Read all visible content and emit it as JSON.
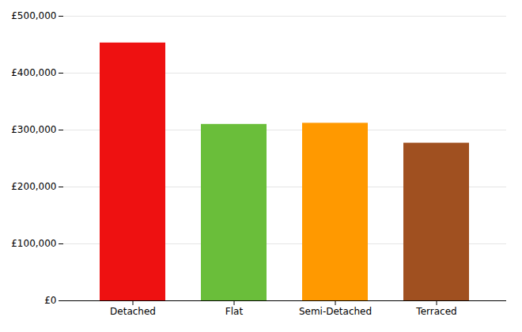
{
  "chart_data": {
    "type": "bar",
    "categories": [
      "Detached",
      "Flat",
      "Semi-Detached",
      "Terraced"
    ],
    "values": [
      453000,
      310000,
      312000,
      277000
    ],
    "colors": [
      "#ee1111",
      "#6abe3a",
      "#ff9900",
      "#a05020"
    ],
    "ylim": [
      0,
      500000
    ],
    "yticks": [
      {
        "value": 0,
        "label": "£0"
      },
      {
        "value": 100000,
        "label": "£100,000"
      },
      {
        "value": 200000,
        "label": "£200,000"
      },
      {
        "value": 300000,
        "label": "£300,000"
      },
      {
        "value": 400000,
        "label": "£400,000"
      },
      {
        "value": 500000,
        "label": "£500,000"
      }
    ],
    "grid": true
  }
}
